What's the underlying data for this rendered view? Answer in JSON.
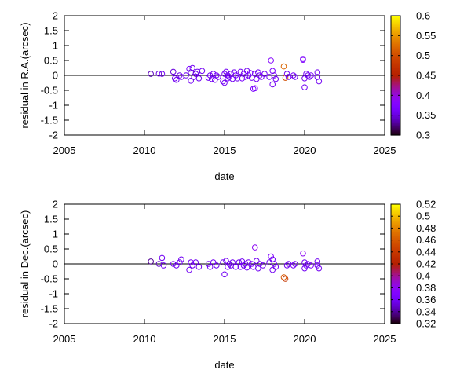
{
  "chart_data": [
    {
      "type": "scatter",
      "title": "",
      "xlabel": "date",
      "ylabel": "residual in R.A.(arcsec)",
      "xlim": [
        2005,
        2025
      ],
      "ylim": [
        -2,
        2
      ],
      "xticks": [
        "2005",
        "2010",
        "2015",
        "2020",
        "2025"
      ],
      "yticks": [
        "2",
        "1.5",
        "1",
        "0.5",
        "0",
        "-0.5",
        "-1",
        "-1.5",
        "-2"
      ],
      "grid": false,
      "zero_line": true,
      "colorbar": {
        "range": [
          0.3,
          0.6
        ],
        "ticks": [
          "0.6",
          "0.55",
          "0.5",
          "0.45",
          "0.4",
          "0.35",
          "0.3"
        ],
        "colormap": "gnuplot"
      },
      "points": [
        {
          "x": 2010.4,
          "y": 0.05,
          "c": 0.34
        },
        {
          "x": 2010.9,
          "y": 0.06,
          "c": 0.35
        },
        {
          "x": 2011.1,
          "y": 0.05,
          "c": 0.36
        },
        {
          "x": 2011.8,
          "y": 0.12,
          "c": 0.35
        },
        {
          "x": 2011.9,
          "y": -0.1,
          "c": 0.36
        },
        {
          "x": 2012.0,
          "y": -0.15,
          "c": 0.36
        },
        {
          "x": 2012.2,
          "y": 0.0,
          "c": 0.36
        },
        {
          "x": 2012.3,
          "y": -0.05,
          "c": 0.36
        },
        {
          "x": 2012.6,
          "y": 0.0,
          "c": 0.36
        },
        {
          "x": 2012.8,
          "y": 0.22,
          "c": 0.37
        },
        {
          "x": 2012.9,
          "y": 0.1,
          "c": 0.35
        },
        {
          "x": 2012.9,
          "y": -0.18,
          "c": 0.36
        },
        {
          "x": 2013.0,
          "y": 0.25,
          "c": 0.36
        },
        {
          "x": 2013.1,
          "y": -0.05,
          "c": 0.35
        },
        {
          "x": 2013.2,
          "y": 0.05,
          "c": 0.35
        },
        {
          "x": 2013.3,
          "y": 0.12,
          "c": 0.36
        },
        {
          "x": 2013.4,
          "y": -0.1,
          "c": 0.36
        },
        {
          "x": 2013.6,
          "y": 0.15,
          "c": 0.36
        },
        {
          "x": 2014.0,
          "y": -0.08,
          "c": 0.36
        },
        {
          "x": 2014.1,
          "y": 0.0,
          "c": 0.36
        },
        {
          "x": 2014.2,
          "y": -0.12,
          "c": 0.36
        },
        {
          "x": 2014.3,
          "y": 0.05,
          "c": 0.36
        },
        {
          "x": 2014.4,
          "y": -0.15,
          "c": 0.36
        },
        {
          "x": 2014.5,
          "y": 0.0,
          "c": 0.37
        },
        {
          "x": 2014.6,
          "y": -0.05,
          "c": 0.36
        },
        {
          "x": 2014.9,
          "y": -0.2,
          "c": 0.36
        },
        {
          "x": 2015.0,
          "y": 0.05,
          "c": 0.36
        },
        {
          "x": 2015.0,
          "y": -0.25,
          "c": 0.36
        },
        {
          "x": 2015.1,
          "y": 0.12,
          "c": 0.36
        },
        {
          "x": 2015.2,
          "y": -0.1,
          "c": 0.37
        },
        {
          "x": 2015.2,
          "y": 0.0,
          "c": 0.36
        },
        {
          "x": 2015.3,
          "y": -0.05,
          "c": 0.36
        },
        {
          "x": 2015.4,
          "y": 0.05,
          "c": 0.36
        },
        {
          "x": 2015.5,
          "y": -0.12,
          "c": 0.36
        },
        {
          "x": 2015.6,
          "y": 0.1,
          "c": 0.36
        },
        {
          "x": 2015.7,
          "y": 0.0,
          "c": 0.37
        },
        {
          "x": 2015.8,
          "y": -0.1,
          "c": 0.36
        },
        {
          "x": 2016.0,
          "y": 0.12,
          "c": 0.36
        },
        {
          "x": 2016.1,
          "y": -0.1,
          "c": 0.37
        },
        {
          "x": 2016.2,
          "y": 0.05,
          "c": 0.36
        },
        {
          "x": 2016.3,
          "y": -0.05,
          "c": 0.36
        },
        {
          "x": 2016.4,
          "y": 0.15,
          "c": 0.36
        },
        {
          "x": 2016.5,
          "y": 0.0,
          "c": 0.36
        },
        {
          "x": 2016.6,
          "y": 0.08,
          "c": 0.37
        },
        {
          "x": 2016.7,
          "y": -0.08,
          "c": 0.36
        },
        {
          "x": 2016.8,
          "y": -0.45,
          "c": 0.37
        },
        {
          "x": 2016.9,
          "y": -0.43,
          "c": 0.37
        },
        {
          "x": 2016.9,
          "y": 0.05,
          "c": 0.36
        },
        {
          "x": 2017.0,
          "y": -0.12,
          "c": 0.36
        },
        {
          "x": 2017.1,
          "y": 0.1,
          "c": 0.36
        },
        {
          "x": 2017.2,
          "y": 0.0,
          "c": 0.37
        },
        {
          "x": 2017.3,
          "y": -0.05,
          "c": 0.36
        },
        {
          "x": 2017.5,
          "y": 0.05,
          "c": 0.36
        },
        {
          "x": 2017.8,
          "y": -0.05,
          "c": 0.36
        },
        {
          "x": 2017.9,
          "y": 0.5,
          "c": 0.38
        },
        {
          "x": 2018.0,
          "y": -0.3,
          "c": 0.36
        },
        {
          "x": 2018.0,
          "y": 0.15,
          "c": 0.37
        },
        {
          "x": 2018.1,
          "y": 0.0,
          "c": 0.36
        },
        {
          "x": 2018.2,
          "y": -0.12,
          "c": 0.36
        },
        {
          "x": 2018.7,
          "y": 0.3,
          "c": 0.52
        },
        {
          "x": 2018.8,
          "y": -0.08,
          "c": 0.5
        },
        {
          "x": 2018.9,
          "y": 0.05,
          "c": 0.36
        },
        {
          "x": 2019.0,
          "y": -0.05,
          "c": 0.36
        },
        {
          "x": 2019.3,
          "y": 0.0,
          "c": 0.37
        },
        {
          "x": 2019.4,
          "y": -0.05,
          "c": 0.36
        },
        {
          "x": 2019.9,
          "y": 0.52,
          "c": 0.38
        },
        {
          "x": 2019.9,
          "y": 0.55,
          "c": 0.37
        },
        {
          "x": 2020.0,
          "y": -0.1,
          "c": 0.36
        },
        {
          "x": 2020.0,
          "y": -0.4,
          "c": 0.36
        },
        {
          "x": 2020.1,
          "y": 0.05,
          "c": 0.36
        },
        {
          "x": 2020.2,
          "y": 0.0,
          "c": 0.36
        },
        {
          "x": 2020.3,
          "y": -0.05,
          "c": 0.36
        },
        {
          "x": 2020.4,
          "y": 0.0,
          "c": 0.37
        },
        {
          "x": 2020.8,
          "y": 0.1,
          "c": 0.36
        },
        {
          "x": 2020.8,
          "y": -0.05,
          "c": 0.36
        },
        {
          "x": 2020.9,
          "y": -0.2,
          "c": 0.36
        }
      ]
    },
    {
      "type": "scatter",
      "title": "",
      "xlabel": "date",
      "ylabel": "residual in Dec.(arcsec)",
      "xlim": [
        2005,
        2025
      ],
      "ylim": [
        -2,
        2
      ],
      "xticks": [
        "2005",
        "2010",
        "2015",
        "2020",
        "2025"
      ],
      "yticks": [
        "2",
        "1.5",
        "1",
        "0.5",
        "0",
        "-0.5",
        "-1",
        "-1.5",
        "-2"
      ],
      "grid": false,
      "zero_line": true,
      "colorbar": {
        "range": [
          0.32,
          0.52
        ],
        "ticks": [
          "0.52",
          "0.5",
          "0.48",
          "0.46",
          "0.44",
          "0.42",
          "0.4",
          "0.38",
          "0.36",
          "0.34",
          "0.32"
        ],
        "colormap": "gnuplot"
      },
      "points": [
        {
          "x": 2010.4,
          "y": 0.08,
          "c": 0.34
        },
        {
          "x": 2010.9,
          "y": 0.0,
          "c": 0.35
        },
        {
          "x": 2011.1,
          "y": 0.2,
          "c": 0.36
        },
        {
          "x": 2011.2,
          "y": -0.05,
          "c": 0.36
        },
        {
          "x": 2011.8,
          "y": 0.0,
          "c": 0.36
        },
        {
          "x": 2012.0,
          "y": -0.05,
          "c": 0.36
        },
        {
          "x": 2012.2,
          "y": 0.05,
          "c": 0.36
        },
        {
          "x": 2012.3,
          "y": 0.15,
          "c": 0.36
        },
        {
          "x": 2012.8,
          "y": -0.2,
          "c": 0.36
        },
        {
          "x": 2012.9,
          "y": 0.05,
          "c": 0.36
        },
        {
          "x": 2013.0,
          "y": -0.05,
          "c": 0.36
        },
        {
          "x": 2013.2,
          "y": 0.05,
          "c": 0.36
        },
        {
          "x": 2013.4,
          "y": -0.1,
          "c": 0.36
        },
        {
          "x": 2014.0,
          "y": 0.0,
          "c": 0.36
        },
        {
          "x": 2014.1,
          "y": -0.1,
          "c": 0.36
        },
        {
          "x": 2014.3,
          "y": 0.05,
          "c": 0.36
        },
        {
          "x": 2014.5,
          "y": -0.05,
          "c": 0.36
        },
        {
          "x": 2014.9,
          "y": 0.05,
          "c": 0.36
        },
        {
          "x": 2015.0,
          "y": -0.35,
          "c": 0.36
        },
        {
          "x": 2015.1,
          "y": 0.1,
          "c": 0.36
        },
        {
          "x": 2015.2,
          "y": -0.1,
          "c": 0.37
        },
        {
          "x": 2015.3,
          "y": 0.0,
          "c": 0.36
        },
        {
          "x": 2015.4,
          "y": -0.05,
          "c": 0.36
        },
        {
          "x": 2015.5,
          "y": 0.05,
          "c": 0.36
        },
        {
          "x": 2015.7,
          "y": -0.1,
          "c": 0.36
        },
        {
          "x": 2015.9,
          "y": 0.05,
          "c": 0.36
        },
        {
          "x": 2016.0,
          "y": -0.1,
          "c": 0.37
        },
        {
          "x": 2016.1,
          "y": 0.08,
          "c": 0.36
        },
        {
          "x": 2016.2,
          "y": -0.05,
          "c": 0.36
        },
        {
          "x": 2016.3,
          "y": 0.0,
          "c": 0.36
        },
        {
          "x": 2016.4,
          "y": -0.12,
          "c": 0.36
        },
        {
          "x": 2016.5,
          "y": 0.05,
          "c": 0.36
        },
        {
          "x": 2016.7,
          "y": 0.0,
          "c": 0.37
        },
        {
          "x": 2016.8,
          "y": -0.1,
          "c": 0.36
        },
        {
          "x": 2016.9,
          "y": 0.55,
          "c": 0.38
        },
        {
          "x": 2017.0,
          "y": 0.1,
          "c": 0.36
        },
        {
          "x": 2017.1,
          "y": -0.15,
          "c": 0.36
        },
        {
          "x": 2017.2,
          "y": 0.0,
          "c": 0.37
        },
        {
          "x": 2017.4,
          "y": -0.05,
          "c": 0.36
        },
        {
          "x": 2017.8,
          "y": 0.05,
          "c": 0.36
        },
        {
          "x": 2017.9,
          "y": 0.25,
          "c": 0.37
        },
        {
          "x": 2018.0,
          "y": -0.2,
          "c": 0.36
        },
        {
          "x": 2018.0,
          "y": 0.15,
          "c": 0.36
        },
        {
          "x": 2018.1,
          "y": 0.0,
          "c": 0.36
        },
        {
          "x": 2018.2,
          "y": -0.1,
          "c": 0.36
        },
        {
          "x": 2018.7,
          "y": -0.45,
          "c": 0.46
        },
        {
          "x": 2018.8,
          "y": -0.5,
          "c": 0.44
        },
        {
          "x": 2018.9,
          "y": -0.05,
          "c": 0.36
        },
        {
          "x": 2019.0,
          "y": 0.0,
          "c": 0.36
        },
        {
          "x": 2019.3,
          "y": -0.05,
          "c": 0.37
        },
        {
          "x": 2019.4,
          "y": 0.0,
          "c": 0.36
        },
        {
          "x": 2019.9,
          "y": 0.35,
          "c": 0.38
        },
        {
          "x": 2020.0,
          "y": -0.15,
          "c": 0.36
        },
        {
          "x": 2020.0,
          "y": 0.05,
          "c": 0.36
        },
        {
          "x": 2020.1,
          "y": -0.05,
          "c": 0.36
        },
        {
          "x": 2020.2,
          "y": 0.0,
          "c": 0.36
        },
        {
          "x": 2020.4,
          "y": -0.05,
          "c": 0.37
        },
        {
          "x": 2020.8,
          "y": 0.08,
          "c": 0.36
        },
        {
          "x": 2020.8,
          "y": -0.05,
          "c": 0.36
        },
        {
          "x": 2020.9,
          "y": -0.15,
          "c": 0.36
        }
      ]
    }
  ]
}
